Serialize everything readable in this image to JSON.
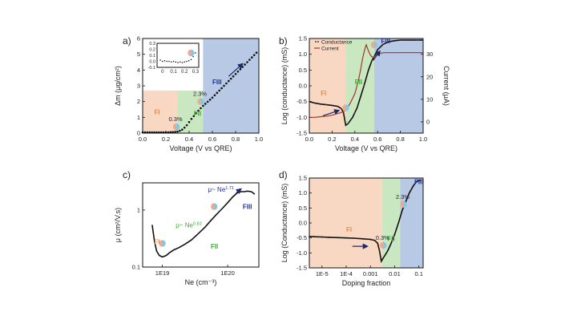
{
  "colors": {
    "FI": "#f8d8c2",
    "FII": "#c9e7c0",
    "FIII": "#b8c9e6",
    "FI_text": "#e98a4a",
    "FII_text": "#36b030",
    "FIII_text": "#1d2f9a",
    "conductance": "#5a3a28",
    "current": "#a3362a",
    "line": "#111111",
    "arrow": "#1a2a6c",
    "marker_fill_a": "#7ec8e8",
    "marker_fill_b": "#f2a98a"
  },
  "chart_data": [
    {
      "id": "a",
      "panel_label": "a)",
      "type": "scatter",
      "xlabel": "Voltage (V vs QRE)",
      "ylabel": "Δm (μg/cm²)",
      "xlim": [
        0,
        1.0
      ],
      "ylim": [
        0,
        6
      ],
      "xticks": [
        "0.0",
        "0.2",
        "0.4",
        "0.6",
        "0.8",
        "1.0"
      ],
      "yticks": [
        "0",
        "1",
        "2",
        "3",
        "4",
        "5",
        "6"
      ],
      "regions": [
        {
          "label": "FI",
          "from": 0,
          "to": 0.3,
          "yFrom": 0,
          "yTo": 2.7
        },
        {
          "label": "FII",
          "from": 0.3,
          "to": 0.52,
          "yFrom": 0,
          "yTo": 2.7
        },
        {
          "label": "FIII",
          "from": 0.52,
          "to": 1.0,
          "yFrom": 0,
          "yTo": 6
        }
      ],
      "region_labels": [
        {
          "text": "FI",
          "x": 0.1,
          "y": 1.2,
          "region": "FI"
        },
        {
          "text": "FII",
          "x": 0.44,
          "y": 1.1,
          "region": "FII"
        },
        {
          "text": "FIII",
          "x": 0.6,
          "y": 3.1,
          "region": "FIII"
        }
      ],
      "markers": [
        {
          "x": 0.29,
          "y": 0.4,
          "label": "0.3%"
        },
        {
          "x": 0.5,
          "y": 2.0,
          "label": "2.3%"
        }
      ],
      "arrow": {
        "x1": 0.74,
        "y1": 3.6,
        "x2": 0.86,
        "y2": 4.4
      },
      "series": [
        {
          "x": [
            0,
            0.02,
            0.04,
            0.06,
            0.08,
            0.1,
            0.12,
            0.14,
            0.16,
            0.18,
            0.2,
            0.22,
            0.24,
            0.26,
            0.28,
            0.3,
            0.32,
            0.34,
            0.36,
            0.38,
            0.4,
            0.42,
            0.44,
            0.46,
            0.48,
            0.5,
            0.52,
            0.54,
            0.56,
            0.58,
            0.6,
            0.62,
            0.64,
            0.66,
            0.68,
            0.7,
            0.72,
            0.74,
            0.76,
            0.78,
            0.8,
            0.82,
            0.84,
            0.86,
            0.88,
            0.9,
            0.92,
            0.94,
            0.96,
            0.98
          ],
          "values": [
            0.05,
            0.05,
            0.05,
            0.05,
            0.05,
            0.05,
            0.05,
            0.05,
            0.05,
            0.05,
            0.05,
            0.05,
            0.06,
            0.07,
            0.08,
            0.1,
            0.15,
            0.22,
            0.35,
            0.5,
            0.7,
            0.9,
            1.08,
            1.25,
            1.42,
            1.58,
            1.73,
            1.86,
            1.99,
            2.12,
            2.25,
            2.4,
            2.55,
            2.7,
            2.85,
            3.0,
            3.15,
            3.3,
            3.45,
            3.6,
            3.75,
            3.9,
            4.05,
            4.2,
            4.35,
            4.5,
            4.65,
            4.8,
            4.95,
            5.1
          ]
        }
      ],
      "inset": {
        "xlim": [
          -0.05,
          0.33
        ],
        "ylim": [
          -0.1,
          0.3
        ],
        "xticks": [
          "0",
          "0.1",
          "0.2",
          "0.3"
        ],
        "yticks": [
          "-0.1",
          "0.0",
          "0.1",
          "0.2",
          "0.3"
        ],
        "x": [
          -0.02,
          0.0,
          0.02,
          0.04,
          0.06,
          0.08,
          0.1,
          0.12,
          0.14,
          0.16,
          0.18,
          0.2,
          0.22,
          0.24,
          0.26,
          0.28,
          0.3
        ],
        "values": [
          0.02,
          0.0,
          0.01,
          0.0,
          0.0,
          -0.01,
          0.0,
          -0.01,
          -0.02,
          -0.01,
          -0.02,
          -0.01,
          0.0,
          0.01,
          0.03,
          0.08,
          0.14
        ],
        "marker": {
          "x": 0.26,
          "y": 0.14
        }
      }
    },
    {
      "id": "b",
      "panel_label": "b)",
      "type": "line",
      "xlabel": "Voltage (V vs QRE)",
      "ylabel": "Log (conductance) (mS)",
      "y2label": "Current (μA)",
      "xlim": [
        0,
        1.0
      ],
      "ylim": [
        -1.5,
        1.5
      ],
      "y2lim": [
        -5,
        37
      ],
      "xticks": [
        "0.0",
        "0.2",
        "0.4",
        "0.6",
        "0.8",
        "1.0"
      ],
      "yticks": [
        "-1.5",
        "-1.0",
        "-0.5",
        "0.0",
        "0.5",
        "1.0",
        "1.5"
      ],
      "y2ticks": [
        "0",
        "10",
        "20",
        "30"
      ],
      "legend": [
        "Conductance",
        "Current"
      ],
      "legend_position": "top-left",
      "regions": [
        {
          "label": "FI",
          "from": 0,
          "to": 0.32
        },
        {
          "label": "FII",
          "from": 0.32,
          "to": 0.57
        },
        {
          "label": "FIII",
          "from": 0.57,
          "to": 1.0
        }
      ],
      "region_labels": [
        {
          "text": "FI",
          "x": 0.1,
          "y": -0.3,
          "region": "FI"
        },
        {
          "text": "FII",
          "x": 0.4,
          "y": 0.05,
          "region": "FII"
        },
        {
          "text": "FIII",
          "x": 0.63,
          "y": 1.35,
          "region": "FIII"
        }
      ],
      "markers": [
        {
          "x": 0.32,
          "y": -0.7
        },
        {
          "x": 0.57,
          "y": 1.3
        }
      ],
      "arrows": [
        {
          "x1": 0.12,
          "y1": -0.95,
          "x2": 0.26,
          "y2": -0.78
        },
        {
          "x1": 0.56,
          "y1": 0.8,
          "x2": 0.62,
          "y2": 1.1
        }
      ],
      "series": [
        {
          "name": "Conductance",
          "x": [
            0,
            0.05,
            0.1,
            0.15,
            0.2,
            0.25,
            0.28,
            0.3,
            0.32,
            0.34,
            0.36,
            0.38,
            0.4,
            0.42,
            0.45,
            0.48,
            0.5,
            0.52,
            0.55,
            0.58,
            0.6,
            0.65,
            0.7,
            0.75,
            0.8,
            0.85,
            0.9,
            0.95,
            1.0
          ],
          "values": [
            -0.5,
            -0.55,
            -0.58,
            -0.6,
            -0.62,
            -0.65,
            -0.72,
            -0.85,
            -1.25,
            -1.2,
            -1.1,
            -1.0,
            -0.85,
            -0.7,
            -0.35,
            0.0,
            0.25,
            0.5,
            0.8,
            1.0,
            1.15,
            1.32,
            1.4,
            1.43,
            1.45,
            1.45,
            1.45,
            1.45,
            1.45
          ]
        },
        {
          "name": "Current",
          "x": [
            0,
            0.05,
            0.1,
            0.15,
            0.2,
            0.25,
            0.3,
            0.33,
            0.36,
            0.4,
            0.43,
            0.45,
            0.47,
            0.49,
            0.5,
            0.52,
            0.54,
            0.56,
            0.58,
            0.6,
            0.65,
            0.7,
            0.8,
            0.9,
            1.0
          ],
          "values": [
            -1.0,
            -1.0,
            -0.98,
            -0.96,
            -0.93,
            -0.88,
            -0.82,
            -0.72,
            -0.55,
            -0.25,
            0.15,
            0.5,
            0.9,
            1.2,
            1.3,
            1.1,
            0.95,
            0.9,
            0.95,
            1.0,
            1.05,
            1.05,
            1.05,
            1.05,
            1.05
          ]
        }
      ]
    },
    {
      "id": "c",
      "panel_label": "c)",
      "type": "line",
      "xlabel": "Ne (cm⁻³)",
      "ylabel": "μ (cm²/V.s)",
      "xscale": "log",
      "yscale": "log",
      "xlim": [
        5e+18,
        3e+20
      ],
      "ylim": [
        0.1,
        3
      ],
      "xticks": [
        {
          "v": 1e+19,
          "label": "1E19"
        },
        {
          "v": 1e+20,
          "label": "1E20"
        }
      ],
      "yticks": [
        {
          "v": 0.1,
          "label": "0.1"
        },
        {
          "v": 1,
          "label": "1"
        }
      ],
      "regions": [],
      "region_labels": [
        {
          "text": "FI",
          "x": 7.5e+18,
          "y": 0.25,
          "region": "FI"
        },
        {
          "text": "FII",
          "x": 5.5e+19,
          "y": 0.21,
          "region": "FII"
        },
        {
          "text": "FIII",
          "x": 1.7e+20,
          "y": 1.05,
          "region": "FIII"
        }
      ],
      "annotations": [
        {
          "text": "μ~ Ne",
          "sup": "0.83",
          "x": 1.6e+19,
          "y": 0.5,
          "region": "FII"
        },
        {
          "text": "μ~ Ne",
          "sup": "1.71",
          "x": 5e+19,
          "y": 2.1,
          "region": "FIII"
        }
      ],
      "markers": [
        {
          "x": 1e+19,
          "y": 0.26
        },
        {
          "x": 6.2e+19,
          "y": 1.15
        }
      ],
      "arrow": {
        "x1": 1.35e+20,
        "y1": 2.0,
        "x2": 1.6e+20,
        "y2": 2.35
      },
      "series": [
        {
          "x": [
            7e+18,
            7.6e+18,
            8.2e+18,
            9e+18,
            1e+19,
            1.15e+19,
            1.3e+19,
            1.5e+19,
            1.8e+19,
            2.2e+19,
            2.8e+19,
            3.5e+19,
            4.5e+19,
            5.5e+19,
            6.5e+19,
            7.5e+19,
            8.5e+19,
            1e+20,
            1.2e+20,
            1.4e+20,
            1.6e+20,
            1.8e+20,
            2e+20,
            2.3e+20,
            2.6e+20
          ],
          "values": [
            0.55,
            0.28,
            0.19,
            0.16,
            0.15,
            0.16,
            0.18,
            0.2,
            0.22,
            0.25,
            0.3,
            0.38,
            0.5,
            0.65,
            0.8,
            0.95,
            1.1,
            1.35,
            1.7,
            2.0,
            2.1,
            2.1,
            2.15,
            2.1,
            1.9
          ]
        }
      ]
    },
    {
      "id": "d",
      "panel_label": "d)",
      "type": "line",
      "xlabel": "Doping fraction",
      "ylabel": "Log (Conductance) (mS)",
      "xscale": "log",
      "xlim": [
        3e-06,
        0.15
      ],
      "ylim": [
        -1.5,
        1.5
      ],
      "xticks": [
        {
          "v": 1e-05,
          "label": "1E-5"
        },
        {
          "v": 0.0001,
          "label": "1E-4"
        },
        {
          "v": 0.001,
          "label": "0.001"
        },
        {
          "v": 0.01,
          "label": "0.01"
        },
        {
          "v": 0.1,
          "label": "0.1"
        }
      ],
      "yticks": [
        "-1.5",
        "-1.0",
        "-0.5",
        "0.0",
        "0.5",
        "1.0",
        "1.5"
      ],
      "regions": [
        {
          "label": "FI",
          "from": 3e-06,
          "to": 0.003
        },
        {
          "label": "FII",
          "from": 0.003,
          "to": 0.017
        },
        {
          "label": "FIII",
          "from": 0.017,
          "to": 0.15
        }
      ],
      "region_labels": [
        {
          "text": "FI",
          "x": 0.0001,
          "y": -0.3,
          "region": "FI"
        },
        {
          "text": "FII",
          "x": 0.005,
          "y": -0.6,
          "region": "FII"
        },
        {
          "text": "FIII",
          "x": 0.065,
          "y": 1.3,
          "region": "FIII"
        }
      ],
      "markers": [
        {
          "x": 0.0034,
          "y": -0.75,
          "label": "0.3%"
        },
        {
          "x": 0.023,
          "y": 0.62,
          "label": "2.3%"
        }
      ],
      "arrow": {
        "x1": 0.00018,
        "y1": -0.78,
        "x2": 0.00075,
        "y2": -0.78
      },
      "series": [
        {
          "x": [
            3e-06,
            5e-06,
            1e-05,
            2e-05,
            5e-05,
            0.0001,
            0.0002,
            0.0005,
            0.001,
            0.0015,
            0.002,
            0.0024,
            0.0028,
            0.0032,
            0.004,
            0.005,
            0.007,
            0.01,
            0.015,
            0.02,
            0.03,
            0.04,
            0.06,
            0.08,
            0.1,
            0.13
          ],
          "values": [
            -0.45,
            -0.46,
            -0.47,
            -0.48,
            -0.49,
            -0.5,
            -0.51,
            -0.53,
            -0.55,
            -0.58,
            -0.68,
            -0.95,
            -1.28,
            -1.2,
            -1.08,
            -0.95,
            -0.7,
            -0.38,
            0.05,
            0.4,
            0.75,
            1.0,
            1.25,
            1.38,
            1.42,
            1.43
          ]
        }
      ]
    }
  ]
}
